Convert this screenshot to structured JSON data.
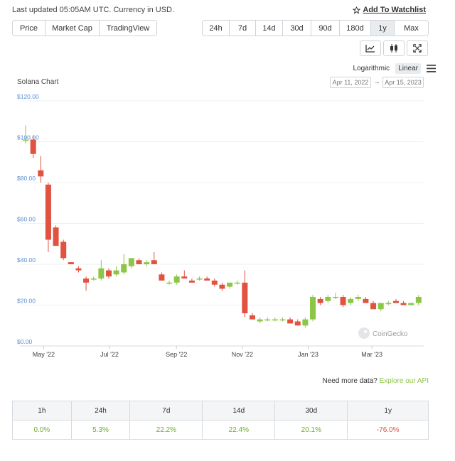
{
  "header": {
    "updated": "Last updated 05:05AM UTC. Currency in USD.",
    "watchlist": "Add To Watchlist"
  },
  "metric_tabs": [
    {
      "label": "Price",
      "active": true
    },
    {
      "label": "Market Cap",
      "active": false
    },
    {
      "label": "TradingView",
      "active": false
    }
  ],
  "range_tabs": [
    {
      "label": "24h",
      "active": false
    },
    {
      "label": "7d",
      "active": false
    },
    {
      "label": "14d",
      "active": false
    },
    {
      "label": "30d",
      "active": false
    },
    {
      "label": "90d",
      "active": false
    },
    {
      "label": "180d",
      "active": false
    },
    {
      "label": "1y",
      "active": true
    },
    {
      "label": "Max",
      "active": false
    }
  ],
  "icons": [
    "line-chart-icon",
    "candlestick-icon",
    "fullscreen-icon",
    "menu-icon",
    "star-icon"
  ],
  "scale": {
    "logarithmic": "Logarithmic",
    "linear": "Linear",
    "active": "Linear"
  },
  "date_range": {
    "from": "Apr 11, 2022",
    "to": "Apr 15, 2023",
    "arrow": "→"
  },
  "colors": {
    "up": "#8dc647",
    "down": "#e15241",
    "accent": "#8dc647",
    "axis_label": "#5b8fd1"
  },
  "chart_data": {
    "type": "candlestick",
    "title": "Solana Chart",
    "watermark": "CoinGecko",
    "y_ticks": [
      "$0.00",
      "$20.00",
      "$40.00",
      "$60.00",
      "$80.00",
      "$100.00",
      "$120.00"
    ],
    "ylim": [
      0,
      120
    ],
    "x_ticks": [
      {
        "label": "May '22",
        "date": "2022-05-01"
      },
      {
        "label": "Jul '22",
        "date": "2022-07-01"
      },
      {
        "label": "Sep '22",
        "date": "2022-09-01"
      },
      {
        "label": "Nov '22",
        "date": "2022-11-01"
      },
      {
        "label": "Jan '23",
        "date": "2023-01-01"
      },
      {
        "label": "Mar '23",
        "date": "2023-03-01"
      }
    ],
    "xlim": [
      "2022-04-09",
      "2023-04-18"
    ],
    "grid": true,
    "candles": [
      {
        "date": "2022-04-11",
        "o": 101,
        "h": 108,
        "l": 99,
        "c": 101
      },
      {
        "date": "2022-04-18",
        "o": 101,
        "h": 103,
        "l": 92,
        "c": 94
      },
      {
        "date": "2022-04-25",
        "o": 86,
        "h": 93,
        "l": 80,
        "c": 83
      },
      {
        "date": "2022-05-02",
        "o": 79,
        "h": 80,
        "l": 46,
        "c": 52
      },
      {
        "date": "2022-05-09",
        "o": 58,
        "h": 59,
        "l": 49,
        "c": 49
      },
      {
        "date": "2022-05-16",
        "o": 51,
        "h": 52,
        "l": 42,
        "c": 43
      },
      {
        "date": "2022-05-23",
        "o": 41,
        "h": 41,
        "l": 40,
        "c": 40
      },
      {
        "date": "2022-05-30",
        "o": 38,
        "h": 39,
        "l": 36,
        "c": 37
      },
      {
        "date": "2022-06-06",
        "o": 33,
        "h": 34,
        "l": 27,
        "c": 31
      },
      {
        "date": "2022-06-13",
        "o": 33,
        "h": 34,
        "l": 32,
        "c": 33
      },
      {
        "date": "2022-06-20",
        "o": 33,
        "h": 42,
        "l": 32,
        "c": 38
      },
      {
        "date": "2022-06-27",
        "o": 37,
        "h": 38,
        "l": 33,
        "c": 34
      },
      {
        "date": "2022-07-04",
        "o": 35,
        "h": 39,
        "l": 34,
        "c": 37
      },
      {
        "date": "2022-07-11",
        "o": 36,
        "h": 45,
        "l": 35,
        "c": 40
      },
      {
        "date": "2022-07-18",
        "o": 39,
        "h": 43,
        "l": 38,
        "c": 43
      },
      {
        "date": "2022-07-25",
        "o": 42,
        "h": 43,
        "l": 40,
        "c": 40
      },
      {
        "date": "2022-08-01",
        "o": 40,
        "h": 42,
        "l": 39,
        "c": 41
      },
      {
        "date": "2022-08-08",
        "o": 42,
        "h": 46,
        "l": 40,
        "c": 40
      },
      {
        "date": "2022-08-15",
        "o": 35,
        "h": 36,
        "l": 32,
        "c": 32
      },
      {
        "date": "2022-08-22",
        "o": 31,
        "h": 32,
        "l": 30,
        "c": 31
      },
      {
        "date": "2022-08-29",
        "o": 31,
        "h": 35,
        "l": 30,
        "c": 34
      },
      {
        "date": "2022-09-05",
        "o": 34,
        "h": 37,
        "l": 33,
        "c": 33
      },
      {
        "date": "2022-09-12",
        "o": 32,
        "h": 33,
        "l": 31,
        "c": 31
      },
      {
        "date": "2022-09-19",
        "o": 33,
        "h": 34,
        "l": 32,
        "c": 33
      },
      {
        "date": "2022-09-26",
        "o": 33,
        "h": 34,
        "l": 32,
        "c": 32
      },
      {
        "date": "2022-10-03",
        "o": 32,
        "h": 33,
        "l": 29,
        "c": 30
      },
      {
        "date": "2022-10-10",
        "o": 30,
        "h": 31,
        "l": 27,
        "c": 28
      },
      {
        "date": "2022-10-17",
        "o": 29,
        "h": 31,
        "l": 28,
        "c": 31
      },
      {
        "date": "2022-10-24",
        "o": 31,
        "h": 32,
        "l": 30,
        "c": 31
      },
      {
        "date": "2022-10-31",
        "o": 31,
        "h": 37,
        "l": 14,
        "c": 16
      },
      {
        "date": "2022-11-07",
        "o": 15,
        "h": 16,
        "l": 13,
        "c": 13
      },
      {
        "date": "2022-11-14",
        "o": 12,
        "h": 14,
        "l": 11,
        "c": 13
      },
      {
        "date": "2022-11-21",
        "o": 13,
        "h": 14,
        "l": 12,
        "c": 13
      },
      {
        "date": "2022-11-28",
        "o": 13,
        "h": 14,
        "l": 12,
        "c": 13
      },
      {
        "date": "2022-12-05",
        "o": 13,
        "h": 14,
        "l": 12,
        "c": 13
      },
      {
        "date": "2022-12-12",
        "o": 13,
        "h": 14,
        "l": 11,
        "c": 11
      },
      {
        "date": "2022-12-19",
        "o": 12,
        "h": 13,
        "l": 10,
        "c": 10
      },
      {
        "date": "2022-12-26",
        "o": 10,
        "h": 14,
        "l": 9,
        "c": 13
      },
      {
        "date": "2023-01-02",
        "o": 13,
        "h": 25,
        "l": 12,
        "c": 24
      },
      {
        "date": "2023-01-09",
        "o": 23,
        "h": 24,
        "l": 20,
        "c": 21
      },
      {
        "date": "2023-01-16",
        "o": 22,
        "h": 25,
        "l": 21,
        "c": 24
      },
      {
        "date": "2023-01-23",
        "o": 24,
        "h": 26,
        "l": 23,
        "c": 24
      },
      {
        "date": "2023-01-30",
        "o": 24,
        "h": 25,
        "l": 19,
        "c": 20
      },
      {
        "date": "2023-02-06",
        "o": 21,
        "h": 24,
        "l": 20,
        "c": 23
      },
      {
        "date": "2023-02-13",
        "o": 23,
        "h": 25,
        "l": 22,
        "c": 24
      },
      {
        "date": "2023-02-20",
        "o": 23,
        "h": 24,
        "l": 21,
        "c": 21
      },
      {
        "date": "2023-02-27",
        "o": 21,
        "h": 22,
        "l": 18,
        "c": 18
      },
      {
        "date": "2023-03-06",
        "o": 18,
        "h": 21,
        "l": 17,
        "c": 21
      },
      {
        "date": "2023-03-13",
        "o": 21,
        "h": 22,
        "l": 20,
        "c": 21
      },
      {
        "date": "2023-03-20",
        "o": 22,
        "h": 23,
        "l": 21,
        "c": 21
      },
      {
        "date": "2023-03-27",
        "o": 21,
        "h": 22,
        "l": 20,
        "c": 20
      },
      {
        "date": "2023-04-03",
        "o": 20,
        "h": 21,
        "l": 20,
        "c": 21
      },
      {
        "date": "2023-04-10",
        "o": 21,
        "h": 25,
        "l": 20,
        "c": 24
      }
    ]
  },
  "footer": {
    "need_more": "Need more data?",
    "explore": "Explore our API"
  },
  "performance": {
    "headers": [
      "1h",
      "24h",
      "7d",
      "14d",
      "30d",
      "1y"
    ],
    "values": [
      "0.0%",
      "5.3%",
      "22.2%",
      "22.4%",
      "20.1%",
      "-76.0%"
    ],
    "signs": [
      "pos",
      "pos",
      "pos",
      "pos",
      "pos",
      "neg"
    ]
  }
}
